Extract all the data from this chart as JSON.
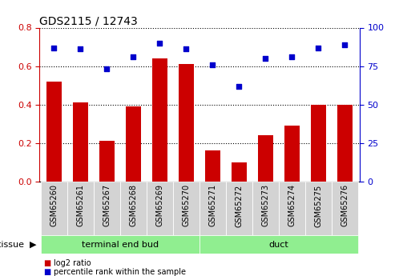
{
  "title": "GDS2115 / 12743",
  "categories": [
    "GSM65260",
    "GSM65261",
    "GSM65267",
    "GSM65268",
    "GSM65269",
    "GSM65270",
    "GSM65271",
    "GSM65272",
    "GSM65273",
    "GSM65274",
    "GSM65275",
    "GSM65276"
  ],
  "log2_ratio": [
    0.52,
    0.41,
    0.21,
    0.39,
    0.64,
    0.61,
    0.16,
    0.1,
    0.24,
    0.29,
    0.4,
    0.4
  ],
  "percentile_rank": [
    87,
    86,
    73,
    81,
    90,
    86,
    76,
    62,
    80,
    81,
    87,
    89
  ],
  "bar_color": "#cc0000",
  "dot_color": "#0000cc",
  "ylim_left": [
    0,
    0.8
  ],
  "ylim_right": [
    0,
    100
  ],
  "yticks_left": [
    0,
    0.2,
    0.4,
    0.6,
    0.8
  ],
  "yticks_right": [
    0,
    25,
    50,
    75,
    100
  ],
  "groups": [
    {
      "label": "terminal end bud",
      "indices": [
        0,
        1,
        2,
        3,
        4,
        5
      ],
      "color": "#90ee90"
    },
    {
      "label": "duct",
      "indices": [
        6,
        7,
        8,
        9,
        10,
        11
      ],
      "color": "#90ee90"
    }
  ],
  "tissue_label": "tissue",
  "legend": [
    {
      "label": "log2 ratio",
      "color": "#cc0000"
    },
    {
      "label": "percentile rank within the sample",
      "color": "#0000cc"
    }
  ],
  "bg_color": "#ffffff",
  "tick_label_color_left": "#cc0000",
  "tick_label_color_right": "#0000cc",
  "bar_width": 0.6,
  "n_samples": 12
}
